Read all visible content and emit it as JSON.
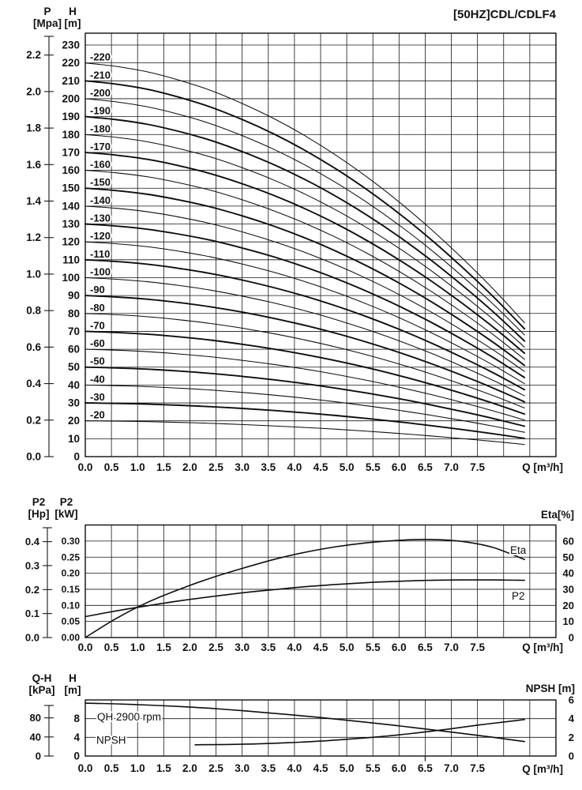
{
  "title": "[50HZ]CDL/CDLF4",
  "q_axis": {
    "label": "Q [m³/h]",
    "tick_labels": [
      "0.0",
      "0.5",
      "1.0",
      "1.5",
      "2.0",
      "2.5",
      "3.0",
      "3.5",
      "4.0",
      "4.5",
      "5.0",
      "5.5",
      "6.0",
      "6.5",
      "7.0",
      "7.5"
    ]
  },
  "top_chart": {
    "p_axis": {
      "name": "P",
      "unit": "[Mpa]",
      "ticks": [
        "0.0",
        "0.2",
        "0.4",
        "0.6",
        "0.8",
        "1.0",
        "1.2",
        "1.4",
        "1.6",
        "1.8",
        "2.0",
        "2.2"
      ]
    },
    "h_axis": {
      "name": "H",
      "unit": "[m]",
      "ticks": [
        "0",
        "10",
        "20",
        "30",
        "40",
        "50",
        "60",
        "70",
        "80",
        "90",
        "100",
        "110",
        "120",
        "130",
        "140",
        "150",
        "160",
        "170",
        "180",
        "190",
        "200",
        "210",
        "220",
        "230"
      ]
    }
  },
  "middle_chart": {
    "hp_axis": {
      "name": "P2",
      "unit": "[Hp]",
      "ticks": [
        "0.0",
        "0.1",
        "0.2",
        "0.3",
        "0.4"
      ]
    },
    "kw_axis": {
      "name": "P2",
      "unit": "[kW]",
      "ticks": [
        "0.00",
        "0.05",
        "0.10",
        "0.15",
        "0.20",
        "0.25",
        "0.30"
      ]
    },
    "eta_axis": {
      "label": "Eta[%]",
      "ticks": [
        "0",
        "10",
        "20",
        "30",
        "40",
        "50",
        "60"
      ]
    },
    "curve_labels": {
      "eta": "Eta",
      "p2": "P2"
    }
  },
  "bottom_chart": {
    "kpa_axis": {
      "name": "Q-H",
      "unit": "[kPa]",
      "ticks": [
        "0",
        "40",
        "80"
      ]
    },
    "hm_axis": {
      "name": "H",
      "unit": "[m]",
      "ticks": [
        "0",
        "4",
        "8"
      ]
    },
    "npsh_axis": {
      "label": "NPSH [m]",
      "ticks": [
        "0",
        "2",
        "4",
        "6"
      ]
    },
    "curve_labels": {
      "qh": "QH 2900 rpm",
      "npsh": "NPSH"
    }
  },
  "chart_data": [
    {
      "type": "line",
      "name": "head-curves",
      "title": "[50HZ]CDL/CDLF4",
      "xlabel": "Q [m³/h]",
      "ylabel_left": [
        "P [Mpa]",
        "H [m]"
      ],
      "x_range": [
        0,
        9
      ],
      "x_grid_step": 0.5,
      "y_range_m": [
        0,
        236
      ],
      "y_grid_step_m": 10,
      "stage_labels": [
        "-20",
        "-30",
        "-40",
        "-50",
        "-60",
        "-70",
        "-80",
        "-90",
        "-100",
        "-110",
        "-120",
        "-130",
        "-140",
        "-150",
        "-160",
        "-170",
        "-180",
        "-190",
        "-200",
        "-210",
        "-220"
      ],
      "shutoff_heads_m": [
        20,
        30,
        40,
        50,
        60,
        70,
        80,
        90,
        100,
        110,
        120,
        130,
        140,
        150,
        160,
        170,
        180,
        190,
        200,
        210,
        220
      ],
      "q_points": [
        0,
        0.6,
        1.2,
        1.8,
        2.4,
        3,
        3.6,
        4.2,
        4.8,
        5.4,
        6,
        6.6,
        7.2,
        7.8,
        8.4
      ],
      "head_fraction_profile": [
        1,
        0.991,
        0.977,
        0.956,
        0.93,
        0.897,
        0.859,
        0.815,
        0.765,
        0.709,
        0.647,
        0.579,
        0.505,
        0.426,
        0.34
      ]
    },
    {
      "type": "line",
      "name": "power-efficiency",
      "xlabel": "Q [m³/h]",
      "ylabel_left": [
        "P2 [Hp]",
        "P2 [kW]"
      ],
      "ylabel_right": "Eta[%]",
      "x_range": [
        0,
        9
      ],
      "y_left_range_kw": [
        0,
        0.35
      ],
      "y_right_range_eta": [
        0,
        70
      ],
      "series": [
        {
          "name": "Eta",
          "unit": "%",
          "x": [
            0,
            0.6,
            1.2,
            1.8,
            2.4,
            3,
            3.6,
            4.2,
            4.8,
            5.4,
            6,
            6.6,
            7.2,
            7.8,
            8.4
          ],
          "y": [
            0,
            12,
            22,
            30,
            37,
            43,
            48.5,
            53,
            56.5,
            59,
            60.5,
            61,
            59.8,
            56,
            48.5
          ]
        },
        {
          "name": "P2",
          "unit": "kW",
          "x": [
            0,
            0.6,
            1.2,
            1.8,
            2.4,
            3,
            3.6,
            4.2,
            4.8,
            5.4,
            6,
            6.6,
            7.2,
            7.8,
            8.4
          ],
          "y": [
            0.065,
            0.083,
            0.099,
            0.114,
            0.127,
            0.139,
            0.149,
            0.158,
            0.165,
            0.171,
            0.175,
            0.178,
            0.179,
            0.179,
            0.178
          ]
        }
      ]
    },
    {
      "type": "line",
      "name": "qh-npsh",
      "xlabel": "Q [m³/h]",
      "ylabel_left": [
        "Q-H [kPa]",
        "H [m]"
      ],
      "ylabel_right": "NPSH [m]",
      "x_range": [
        0,
        9
      ],
      "y_range_m": [
        0,
        12
      ],
      "npsh_range_m": [
        0,
        6
      ],
      "marked_q": 6.5,
      "series": [
        {
          "name": "QH 2900 rpm",
          "unit": "m",
          "x": [
            0,
            0.6,
            1.2,
            1.8,
            2.4,
            3,
            3.6,
            4.2,
            4.8,
            5.4,
            6,
            6.6,
            7.2,
            7.8,
            8.4
          ],
          "y": [
            11.3,
            11.15,
            10.9,
            10.6,
            10.2,
            9.7,
            9.15,
            8.55,
            7.9,
            7.2,
            6.45,
            5.65,
            4.85,
            4,
            3.1
          ]
        },
        {
          "name": "NPSH",
          "unit": "m",
          "x": [
            2.1,
            2.7,
            3.3,
            3.9,
            4.5,
            5.1,
            5.7,
            6.3,
            6.9,
            7.5,
            8.1,
            8.4
          ],
          "y": [
            1.2,
            1.23,
            1.3,
            1.43,
            1.6,
            1.83,
            2.1,
            2.45,
            2.85,
            3.3,
            3.7,
            3.9
          ]
        }
      ]
    }
  ]
}
